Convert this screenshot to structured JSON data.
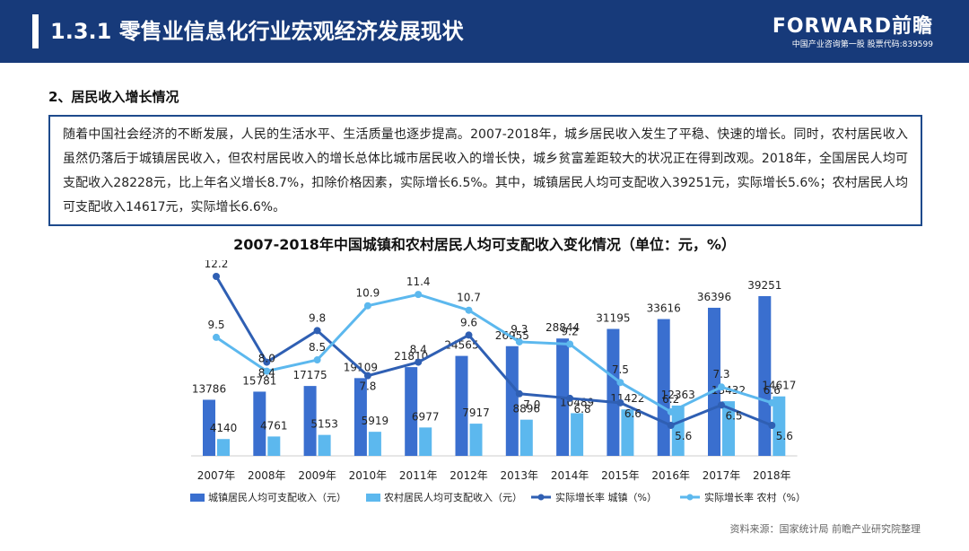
{
  "header": {
    "title": "1.3.1  零售业信息化行业宏观经济发展现状",
    "logo_main": "FORWARD前瞻",
    "logo_sub": "中国产业咨询第一股  股票代码:839599"
  },
  "section": {
    "heading": "2、居民收入增长情况",
    "paragraph": "随着中国社会经济的不断发展，人民的生活水平、生活质量也逐步提高。2007-2018年，城乡居民收入发生了平稳、快速的增长。同时，农村居民收入虽然仍落后于城镇居民收入，但农村居民收入的增长总体比城市居民收入的增长快，城乡贫富差距较大的状况正在得到改观。2018年，全国居民人均可支配收入28228元，比上年名义增长8.7%，扣除价格因素，实际增长6.5%。其中，城镇居民人均可支配收入39251元，实际增长5.6%；农村居民人均可支配收入14617元，实际增长6.6%。"
  },
  "chart_data": {
    "type": "bar",
    "title": "2007-2018年中国城镇和农村居民人均可支配收入变化情况（单位：元，%）",
    "categories": [
      "2007年",
      "2008年",
      "2009年",
      "2010年",
      "2011年",
      "2012年",
      "2013年",
      "2014年",
      "2015年",
      "2016年",
      "2017年",
      "2018年"
    ],
    "bar_series": [
      {
        "name": "城镇居民人均可支配收入（元）",
        "values": [
          13786,
          15781,
          17175,
          19109,
          21810,
          24565,
          26955,
          28844,
          31195,
          33616,
          36396,
          39251
        ],
        "labels": [
          "13786",
          "15781",
          "17175",
          "19109",
          "21810",
          "24565",
          "26955",
          "28844",
          "31195",
          "33616",
          "36396",
          "39251"
        ],
        "color": "#3a6fcf"
      },
      {
        "name": "农村居民人均可支配收入（元）",
        "values": [
          4140,
          4761,
          5153,
          5919,
          6977,
          7917,
          8896,
          10489,
          11422,
          12363,
          13432,
          14617
        ],
        "labels": [
          "4140",
          "4761",
          "5153",
          "5919",
          "6977",
          "7917",
          "8896",
          "10489",
          "11422",
          "12363",
          "13432",
          "14617"
        ],
        "color": "#5cb8ee"
      }
    ],
    "line_series": [
      {
        "name": "实际增长率 城镇（%）",
        "values": [
          12.2,
          8.4,
          9.8,
          7.8,
          8.4,
          9.6,
          7.0,
          6.8,
          6.6,
          5.6,
          6.5,
          5.6
        ],
        "labels": [
          "12.2",
          "8.4",
          "9.8",
          "7.8",
          "8.4",
          "9.6",
          "7.0",
          "6.8",
          "6.6",
          "5.6",
          "6.5",
          "5.6"
        ],
        "color": "#2f5fb3"
      },
      {
        "name": "实际增长率 农村（%）",
        "values": [
          9.5,
          8.0,
          8.5,
          10.9,
          11.4,
          10.7,
          9.3,
          9.2,
          7.5,
          6.2,
          7.3,
          6.6
        ],
        "labels": [
          "9.5",
          "8.0",
          "8.5",
          "10.9",
          "11.4",
          "10.7",
          "9.3",
          "9.2",
          "7.5",
          "6.2",
          "7.3",
          "6.6"
        ],
        "color": "#5cb8ee"
      }
    ],
    "legend_position": "bottom",
    "grid": false
  },
  "footer": {
    "source": "资料来源：国家统计局 前瞻产业研究院整理"
  }
}
